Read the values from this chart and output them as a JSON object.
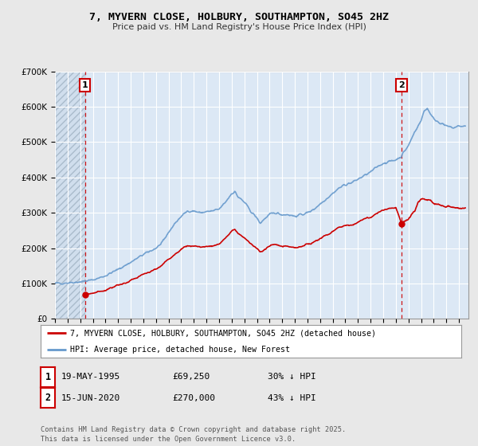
{
  "title": "7, MYVERN CLOSE, HOLBURY, SOUTHAMPTON, SO45 2HZ",
  "subtitle": "Price paid vs. HM Land Registry's House Price Index (HPI)",
  "background_color": "#e8e8e8",
  "plot_bg_color": "#dce8f5",
  "grid_color": "#ffffff",
  "hpi_color": "#6699cc",
  "price_color": "#cc0000",
  "annotation_box_color": "#cc0000",
  "sale1_date": "19-MAY-1995",
  "sale1_price": "£69,250",
  "sale1_hpi": "30% ↓ HPI",
  "sale1_label": "1",
  "sale2_date": "15-JUN-2020",
  "sale2_price": "£270,000",
  "sale2_hpi": "43% ↓ HPI",
  "sale2_label": "2",
  "legend_line1": "7, MYVERN CLOSE, HOLBURY, SOUTHAMPTON, SO45 2HZ (detached house)",
  "legend_line2": "HPI: Average price, detached house, New Forest",
  "footer": "Contains HM Land Registry data © Crown copyright and database right 2025.\nThis data is licensed under the Open Government Licence v3.0.",
  "ylim": [
    0,
    700000
  ],
  "yticks": [
    0,
    100000,
    200000,
    300000,
    400000,
    500000,
    600000,
    700000
  ],
  "xlim_start": 1993.0,
  "xlim_end": 2025.75,
  "sale1_x": 1995.37,
  "sale1_y": 69250,
  "sale2_x": 2020.45,
  "sale2_y": 270000,
  "vline1_x": 1995.37,
  "vline2_x": 2020.45
}
